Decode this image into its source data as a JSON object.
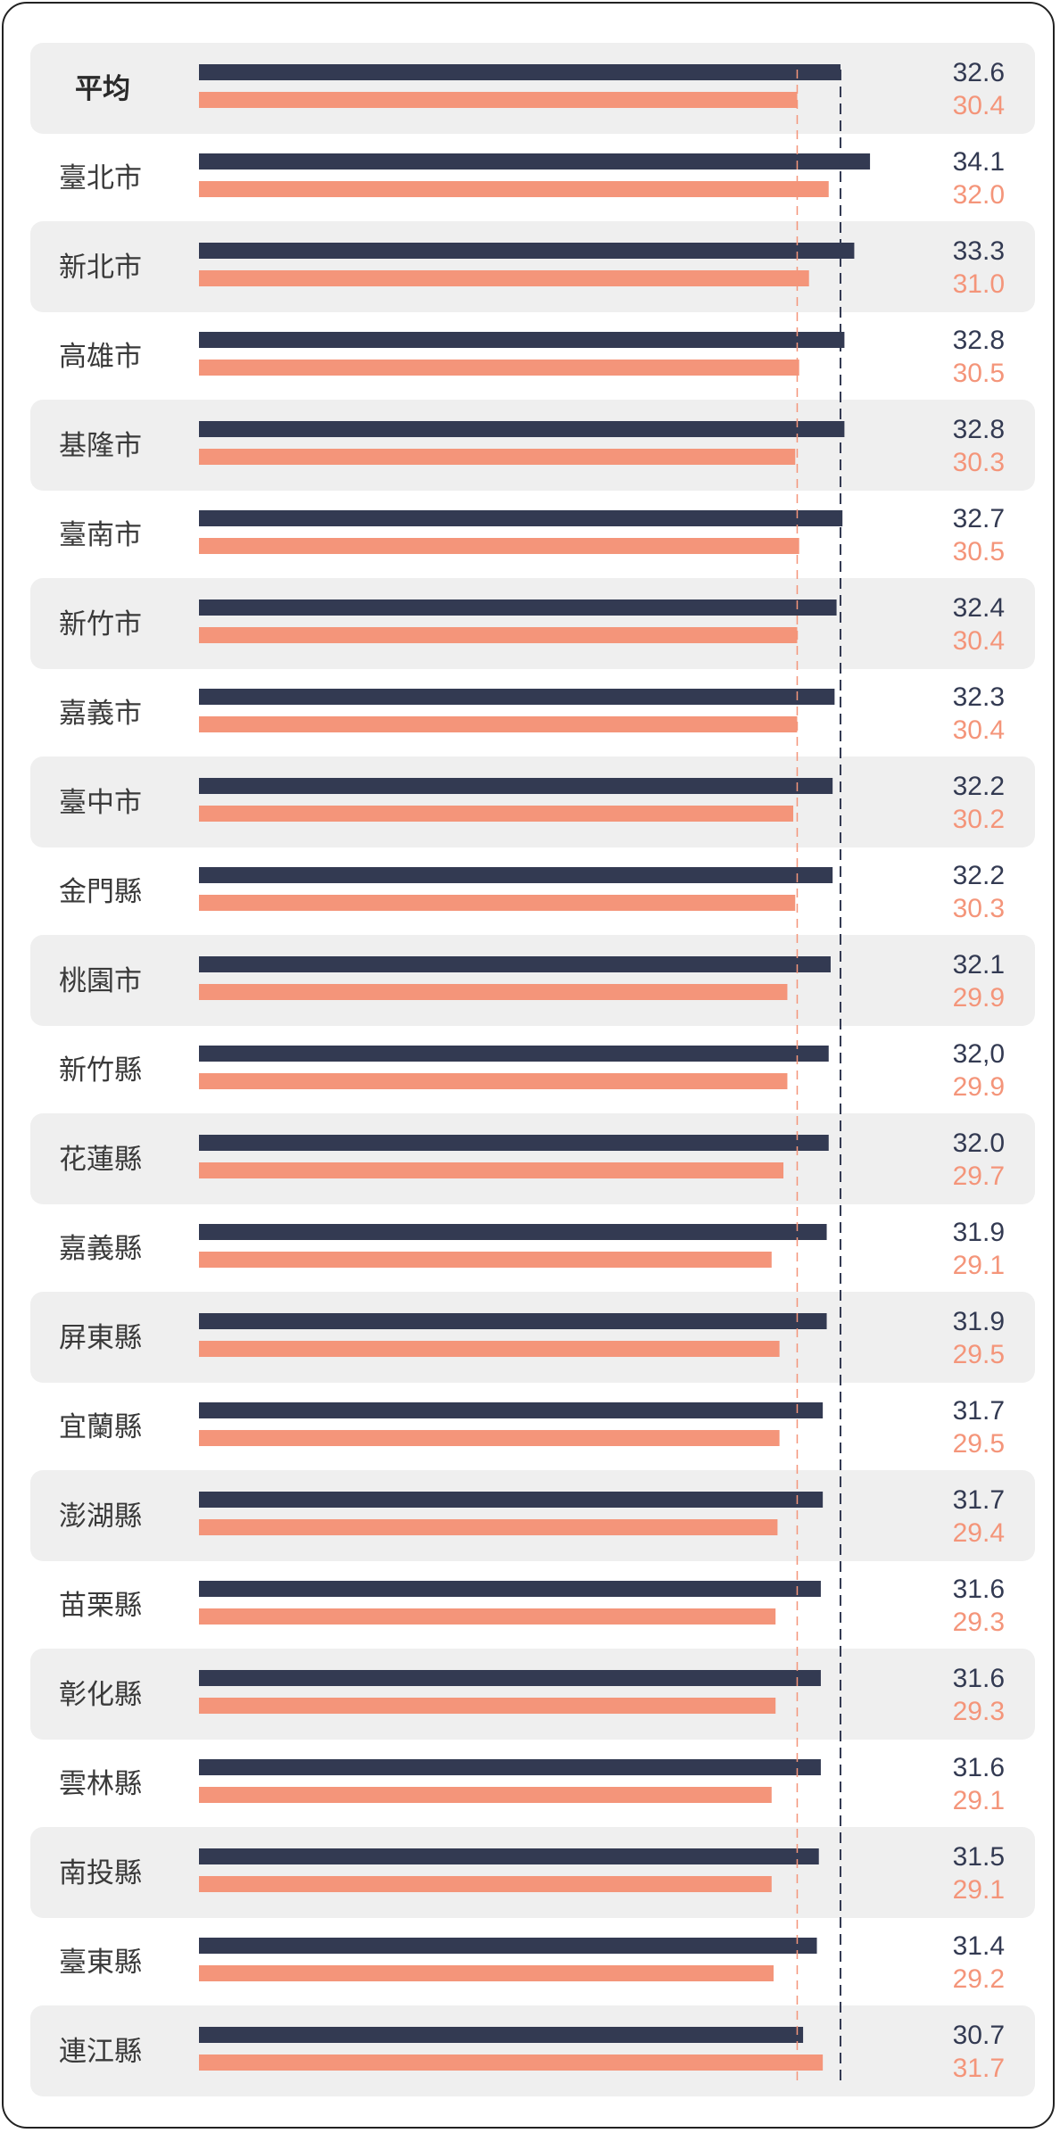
{
  "chart_data": {
    "type": "bar",
    "orientation": "horizontal",
    "title": "",
    "xlabel": "",
    "ylabel": "",
    "xlim": [
      0,
      36.5
    ],
    "categories": [
      "平均",
      "臺北市",
      "新北市",
      "高雄市",
      "基隆市",
      "臺南市",
      "新竹市",
      "嘉義市",
      "臺中市",
      "金門縣",
      "桃園市",
      "新竹縣",
      "花蓮縣",
      "嘉義縣",
      "屏東縣",
      "宜蘭縣",
      "澎湖縣",
      "苗栗縣",
      "彰化縣",
      "雲林縣",
      "南投縣",
      "臺東縣",
      "連江縣"
    ],
    "series": [
      {
        "color": "#333a52",
        "values": [
          32.6,
          34.1,
          33.3,
          32.8,
          32.8,
          32.7,
          32.4,
          32.3,
          32.2,
          32.2,
          32.1,
          32.0,
          32.0,
          31.9,
          31.9,
          31.7,
          31.7,
          31.6,
          31.6,
          31.6,
          31.5,
          31.4,
          30.7
        ],
        "labels": [
          "32.6",
          "34.1",
          "33.3",
          "32.8",
          "32.8",
          "32.7",
          "32.4",
          "32.3",
          "32.2",
          "32.2",
          "32.1",
          "32,0",
          "32.0",
          "31.9",
          "31.9",
          "31.7",
          "31.7",
          "31.6",
          "31.6",
          "31.6",
          "31.5",
          "31.4",
          "30.7"
        ]
      },
      {
        "color": "#f4957a",
        "values": [
          30.4,
          32.0,
          31.0,
          30.5,
          30.3,
          30.5,
          30.4,
          30.4,
          30.2,
          30.3,
          29.9,
          29.9,
          29.7,
          29.1,
          29.5,
          29.5,
          29.4,
          29.3,
          29.3,
          29.1,
          29.1,
          29.2,
          31.7
        ],
        "labels": [
          "30.4",
          "32.0",
          "31.0",
          "30.5",
          "30.3",
          "30.5",
          "30.4",
          "30.4",
          "30.2",
          "30.3",
          "29.9",
          "29.9",
          "29.7",
          "29.1",
          "29.5",
          "29.5",
          "29.4",
          "29.3",
          "29.3",
          "29.1",
          "29.1",
          "29.2",
          "31.7"
        ]
      }
    ],
    "reference_lines": [
      {
        "value": 32.6,
        "style": "dashed",
        "color": "#333a52"
      },
      {
        "value": 30.4,
        "style": "dashed",
        "color": "#f4957a"
      }
    ],
    "highlight_category": "平均",
    "grid": false,
    "legend": "none",
    "row_shading": "alternate",
    "colors": {
      "row_band": "#efefef",
      "border": "#222222"
    }
  }
}
